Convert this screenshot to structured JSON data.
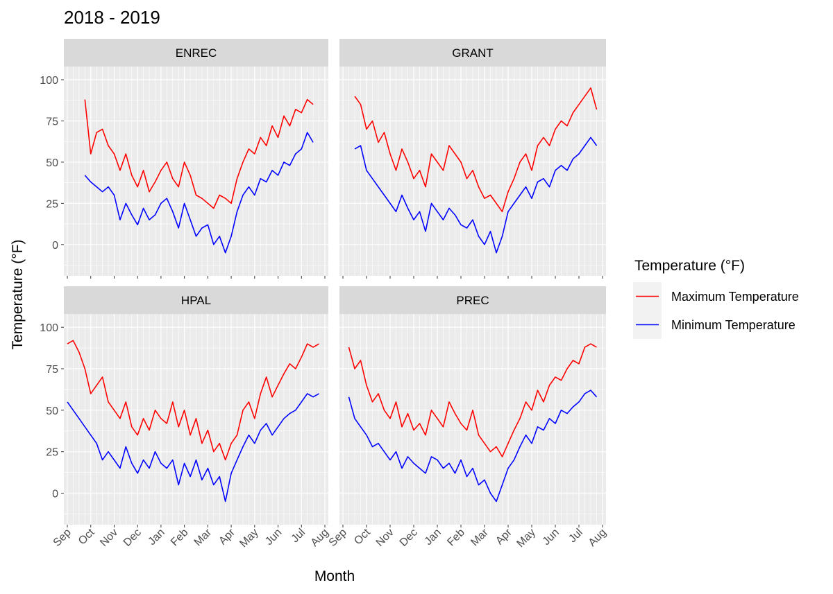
{
  "figure": {
    "title": "2018 - 2019",
    "x_label": "Month",
    "y_label": "Temperature (°F)",
    "legend_title": "Temperature (°F)",
    "legend": "right"
  },
  "chart_data": [
    {
      "type": "line",
      "title": "ENREC",
      "grid": true,
      "ylim": [
        -19,
        108
      ],
      "yticks": [
        0,
        25,
        50,
        75,
        100
      ],
      "categories": [
        "Sep",
        null,
        null,
        null,
        "Oct",
        null,
        null,
        null,
        "Nov",
        null,
        null,
        null,
        "Dec",
        null,
        null,
        null,
        "Jan",
        null,
        null,
        null,
        "Feb",
        null,
        null,
        null,
        "Mar",
        null,
        null,
        null,
        "Apr",
        null,
        null,
        null,
        "May",
        null,
        null,
        null,
        "Jun",
        null,
        null,
        null,
        "Jul",
        null,
        null,
        null,
        "Aug"
      ],
      "series": [
        {
          "name": "Maximum Temperature",
          "color": "#ff0000",
          "values": [
            null,
            null,
            null,
            88,
            55,
            68,
            70,
            60,
            55,
            45,
            55,
            42,
            35,
            45,
            32,
            38,
            45,
            50,
            40,
            35,
            50,
            42,
            30,
            28,
            25,
            22,
            30,
            28,
            25,
            40,
            50,
            58,
            55,
            65,
            60,
            72,
            65,
            78,
            72,
            82,
            80,
            88,
            85,
            null,
            null
          ]
        },
        {
          "name": "Minimum Temperature",
          "color": "#0000ff",
          "values": [
            null,
            null,
            null,
            42,
            38,
            35,
            32,
            35,
            30,
            15,
            25,
            18,
            12,
            22,
            15,
            18,
            25,
            28,
            20,
            10,
            25,
            15,
            5,
            10,
            12,
            0,
            5,
            -5,
            5,
            20,
            30,
            35,
            30,
            40,
            38,
            45,
            42,
            50,
            48,
            55,
            58,
            68,
            62,
            null,
            null
          ]
        }
      ]
    },
    {
      "type": "line",
      "title": "GRANT",
      "grid": true,
      "ylim": [
        -19,
        108
      ],
      "yticks": [
        0,
        25,
        50,
        75,
        100
      ],
      "categories": [
        "Sep",
        null,
        null,
        null,
        "Oct",
        null,
        null,
        null,
        "Nov",
        null,
        null,
        null,
        "Dec",
        null,
        null,
        null,
        "Jan",
        null,
        null,
        null,
        "Feb",
        null,
        null,
        null,
        "Mar",
        null,
        null,
        null,
        "Apr",
        null,
        null,
        null,
        "May",
        null,
        null,
        null,
        "Jun",
        null,
        null,
        null,
        "Jul",
        null,
        null,
        null,
        "Aug"
      ],
      "series": [
        {
          "name": "Maximum Temperature",
          "color": "#ff0000",
          "values": [
            null,
            null,
            90,
            85,
            70,
            75,
            62,
            68,
            55,
            45,
            58,
            50,
            40,
            45,
            35,
            55,
            50,
            45,
            60,
            55,
            50,
            40,
            45,
            35,
            28,
            30,
            25,
            20,
            32,
            40,
            50,
            55,
            45,
            60,
            65,
            60,
            70,
            75,
            72,
            80,
            85,
            90,
            95,
            82,
            null
          ]
        },
        {
          "name": "Minimum Temperature",
          "color": "#0000ff",
          "values": [
            null,
            null,
            58,
            60,
            45,
            40,
            35,
            30,
            25,
            20,
            30,
            22,
            15,
            20,
            8,
            25,
            20,
            15,
            22,
            18,
            12,
            10,
            15,
            5,
            0,
            8,
            -5,
            5,
            20,
            25,
            30,
            35,
            28,
            38,
            40,
            35,
            45,
            48,
            45,
            52,
            55,
            60,
            65,
            60,
            null
          ]
        }
      ]
    },
    {
      "type": "line",
      "title": "HPAL",
      "grid": true,
      "ylim": [
        -19,
        108
      ],
      "yticks": [
        0,
        25,
        50,
        75,
        100
      ],
      "categories": [
        "Sep",
        null,
        null,
        null,
        "Oct",
        null,
        null,
        null,
        "Nov",
        null,
        null,
        null,
        "Dec",
        null,
        null,
        null,
        "Jan",
        null,
        null,
        null,
        "Feb",
        null,
        null,
        null,
        "Mar",
        null,
        null,
        null,
        "Apr",
        null,
        null,
        null,
        "May",
        null,
        null,
        null,
        "Jun",
        null,
        null,
        null,
        "Jul",
        null,
        null,
        null,
        "Aug"
      ],
      "series": [
        {
          "name": "Maximum Temperature",
          "color": "#ff0000",
          "values": [
            90,
            92,
            85,
            75,
            60,
            65,
            70,
            55,
            50,
            45,
            55,
            40,
            35,
            45,
            38,
            50,
            45,
            42,
            55,
            40,
            50,
            35,
            45,
            30,
            38,
            25,
            30,
            20,
            30,
            35,
            50,
            55,
            45,
            60,
            70,
            58,
            65,
            72,
            78,
            75,
            82,
            90,
            88,
            90,
            null
          ]
        },
        {
          "name": "Minimum Temperature",
          "color": "#0000ff",
          "values": [
            55,
            50,
            45,
            40,
            35,
            30,
            20,
            25,
            20,
            15,
            28,
            18,
            12,
            20,
            15,
            25,
            18,
            15,
            20,
            5,
            18,
            10,
            20,
            8,
            15,
            5,
            10,
            -5,
            12,
            20,
            28,
            35,
            30,
            38,
            42,
            35,
            40,
            45,
            48,
            50,
            55,
            60,
            58,
            60,
            null
          ]
        }
      ]
    },
    {
      "type": "line",
      "title": "PREC",
      "grid": true,
      "ylim": [
        -19,
        108
      ],
      "yticks": [
        0,
        25,
        50,
        75,
        100
      ],
      "categories": [
        "Sep",
        null,
        null,
        null,
        "Oct",
        null,
        null,
        null,
        "Nov",
        null,
        null,
        null,
        "Dec",
        null,
        null,
        null,
        "Jan",
        null,
        null,
        null,
        "Feb",
        null,
        null,
        null,
        "Mar",
        null,
        null,
        null,
        "Apr",
        null,
        null,
        null,
        "May",
        null,
        null,
        null,
        "Jun",
        null,
        null,
        null,
        "Jul",
        null,
        null,
        null,
        "Aug"
      ],
      "series": [
        {
          "name": "Maximum Temperature",
          "color": "#ff0000",
          "values": [
            null,
            88,
            75,
            80,
            65,
            55,
            60,
            50,
            45,
            55,
            40,
            48,
            38,
            42,
            35,
            50,
            45,
            40,
            55,
            48,
            42,
            38,
            50,
            35,
            30,
            25,
            28,
            22,
            30,
            38,
            45,
            55,
            50,
            62,
            55,
            65,
            70,
            68,
            75,
            80,
            78,
            88,
            90,
            88,
            null
          ]
        },
        {
          "name": "Minimum Temperature",
          "color": "#0000ff",
          "values": [
            null,
            58,
            45,
            40,
            35,
            28,
            30,
            25,
            20,
            25,
            15,
            22,
            18,
            15,
            12,
            22,
            20,
            15,
            18,
            12,
            20,
            10,
            15,
            5,
            8,
            0,
            -5,
            5,
            15,
            20,
            28,
            35,
            30,
            40,
            38,
            45,
            42,
            50,
            48,
            52,
            55,
            60,
            62,
            58,
            null
          ]
        }
      ]
    }
  ]
}
